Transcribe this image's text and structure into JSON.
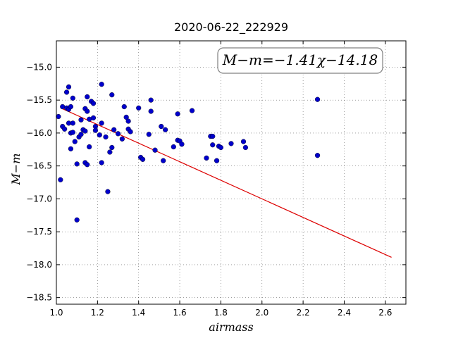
{
  "chart_data": {
    "type": "scatter",
    "title": "2020-06-22_222929",
    "xlabel": "airmass",
    "ylabel": "M−m",
    "annotation": "M−m=−1.41χ−14.18",
    "xlim": [
      1.0,
      2.7
    ],
    "ylim": [
      -18.6,
      -14.6
    ],
    "x_ticks": [
      1.0,
      1.2,
      1.4,
      1.6,
      1.8,
      2.0,
      2.2,
      2.4,
      2.6
    ],
    "x_tick_labels": [
      "1.0",
      "1.2",
      "1.4",
      "1.6",
      "1.8",
      "2.0",
      "2.2",
      "2.4",
      "2.6"
    ],
    "y_ticks": [
      -15.0,
      -15.5,
      -16.0,
      -16.5,
      -17.0,
      -17.5,
      -18.0,
      -18.5
    ],
    "y_tick_labels": [
      "−15.0",
      "−15.5",
      "−16.0",
      "−16.5",
      "−17.0",
      "−17.5",
      "−18.0",
      "−18.5"
    ],
    "grid": true,
    "points_color": "#0000cc",
    "fit_color": "#dd0000",
    "fit_line": {
      "slope": -1.41,
      "intercept": -14.18,
      "x_range": [
        1.02,
        2.63
      ]
    },
    "points": [
      [
        1.01,
        -15.75
      ],
      [
        1.02,
        -16.71
      ],
      [
        1.03,
        -15.6
      ],
      [
        1.03,
        -15.9
      ],
      [
        1.04,
        -15.94
      ],
      [
        1.05,
        -15.38
      ],
      [
        1.05,
        -15.62
      ],
      [
        1.06,
        -15.3
      ],
      [
        1.06,
        -15.85
      ],
      [
        1.06,
        -15.64
      ],
      [
        1.07,
        -15.6
      ],
      [
        1.07,
        -16.0
      ],
      [
        1.07,
        -16.24
      ],
      [
        1.08,
        -15.99
      ],
      [
        1.08,
        -15.47
      ],
      [
        1.08,
        -15.85
      ],
      [
        1.09,
        -16.13
      ],
      [
        1.1,
        -17.32
      ],
      [
        1.1,
        -16.47
      ],
      [
        1.11,
        -16.06
      ],
      [
        1.12,
        -16.02
      ],
      [
        1.12,
        -15.8
      ],
      [
        1.13,
        -15.95
      ],
      [
        1.14,
        -15.63
      ],
      [
        1.14,
        -15.97
      ],
      [
        1.14,
        -16.45
      ],
      [
        1.15,
        -16.48
      ],
      [
        1.15,
        -15.45
      ],
      [
        1.15,
        -15.67
      ],
      [
        1.16,
        -15.79
      ],
      [
        1.16,
        -16.21
      ],
      [
        1.17,
        -15.52
      ],
      [
        1.18,
        -15.55
      ],
      [
        1.18,
        -15.77
      ],
      [
        1.19,
        -15.9
      ],
      [
        1.19,
        -15.96
      ],
      [
        1.21,
        -16.03
      ],
      [
        1.22,
        -15.26
      ],
      [
        1.22,
        -15.85
      ],
      [
        1.22,
        -16.45
      ],
      [
        1.24,
        -16.06
      ],
      [
        1.25,
        -16.89
      ],
      [
        1.26,
        -16.29
      ],
      [
        1.27,
        -15.42
      ],
      [
        1.27,
        -16.22
      ],
      [
        1.28,
        -15.95
      ],
      [
        1.3,
        -16.01
      ],
      [
        1.32,
        -16.09
      ],
      [
        1.33,
        -15.6
      ],
      [
        1.34,
        -15.76
      ],
      [
        1.35,
        -15.82
      ],
      [
        1.35,
        -15.94
      ],
      [
        1.36,
        -15.98
      ],
      [
        1.4,
        -15.62
      ],
      [
        1.41,
        -16.37
      ],
      [
        1.42,
        -16.4
      ],
      [
        1.45,
        -16.02
      ],
      [
        1.46,
        -15.67
      ],
      [
        1.46,
        -15.5
      ],
      [
        1.48,
        -16.26
      ],
      [
        1.51,
        -15.9
      ],
      [
        1.52,
        -16.42
      ],
      [
        1.53,
        -15.95
      ],
      [
        1.57,
        -16.21
      ],
      [
        1.59,
        -15.71
      ],
      [
        1.59,
        -16.11
      ],
      [
        1.6,
        -16.12
      ],
      [
        1.61,
        -16.17
      ],
      [
        1.66,
        -15.66
      ],
      [
        1.73,
        -16.38
      ],
      [
        1.75,
        -16.05
      ],
      [
        1.76,
        -16.05
      ],
      [
        1.76,
        -16.18
      ],
      [
        1.78,
        -16.42
      ],
      [
        1.79,
        -16.2
      ],
      [
        1.8,
        -16.22
      ],
      [
        1.85,
        -16.16
      ],
      [
        1.91,
        -16.13
      ],
      [
        1.92,
        -16.22
      ],
      [
        2.27,
        -15.49
      ],
      [
        2.27,
        -16.34
      ]
    ]
  }
}
